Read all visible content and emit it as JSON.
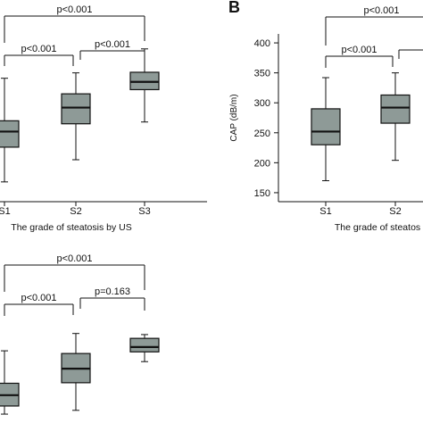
{
  "chart_data": [
    {
      "type": "box",
      "panel": "",
      "xlabel": "The grade of steatosis by US",
      "ylabel": "",
      "categories": [
        "S1",
        "S2",
        "S3"
      ],
      "ylim": [
        135,
        415
      ],
      "boxes": [
        {
          "category": "S1",
          "min": 168,
          "q1": 226,
          "median": 252,
          "q3": 270,
          "max": 341
        },
        {
          "category": "S2",
          "min": 205,
          "q1": 265,
          "median": 292,
          "q3": 315,
          "max": 350
        },
        {
          "category": "S3",
          "min": 268,
          "q1": 322,
          "median": 335,
          "q3": 351,
          "max": 390
        }
      ],
      "comparisons": [
        {
          "from": "S1",
          "to": "S3",
          "label": "p<0.001"
        },
        {
          "from": "S1",
          "to": "S2",
          "label": "p<0.001"
        },
        {
          "from": "S2",
          "to": "S3",
          "label": "p<0.001"
        }
      ]
    },
    {
      "type": "box",
      "panel": "B",
      "xlabel": "The grade of steatos",
      "ylabel": "CAP (dB/m)",
      "categories": [
        "S1",
        "S2"
      ],
      "ylim": [
        135,
        415
      ],
      "yticks": [
        150,
        200,
        250,
        300,
        350,
        400
      ],
      "boxes": [
        {
          "category": "S1",
          "min": 170,
          "q1": 230,
          "median": 252,
          "q3": 290,
          "max": 342
        },
        {
          "category": "S2",
          "min": 204,
          "q1": 266,
          "median": 292,
          "q3": 313,
          "max": 350
        }
      ],
      "comparisons": [
        {
          "from": "S1",
          "to": "offright",
          "label": "p<0.001"
        },
        {
          "from": "S1",
          "to": "S2",
          "label": "p<0.001"
        },
        {
          "from": "S2",
          "to": "offright",
          "label": "p="
        }
      ]
    },
    {
      "type": "box",
      "panel": "",
      "xlabel": "",
      "ylabel": "",
      "categories": [
        "S1",
        "S2",
        "S3"
      ],
      "ylim": [
        120,
        430
      ],
      "boxes": [
        {
          "category": "S1",
          "min": 143,
          "q1": 158,
          "median": 178,
          "q3": 200,
          "max": 260
        },
        {
          "category": "S2",
          "min": 150,
          "q1": 201,
          "median": 227,
          "q3": 255,
          "max": 292
        },
        {
          "category": "S3",
          "min": 240,
          "q1": 258,
          "median": 267,
          "q3": 283,
          "max": 290
        }
      ],
      "comparisons": [
        {
          "from": "S1",
          "to": "S3",
          "label": "p<0.001"
        },
        {
          "from": "S1",
          "to": "S2",
          "label": "p<0.001"
        },
        {
          "from": "S2",
          "to": "S3",
          "label": "p=0.163"
        }
      ]
    }
  ],
  "colors": {
    "box_fill": "#8e9a97",
    "ink": "#111111"
  }
}
